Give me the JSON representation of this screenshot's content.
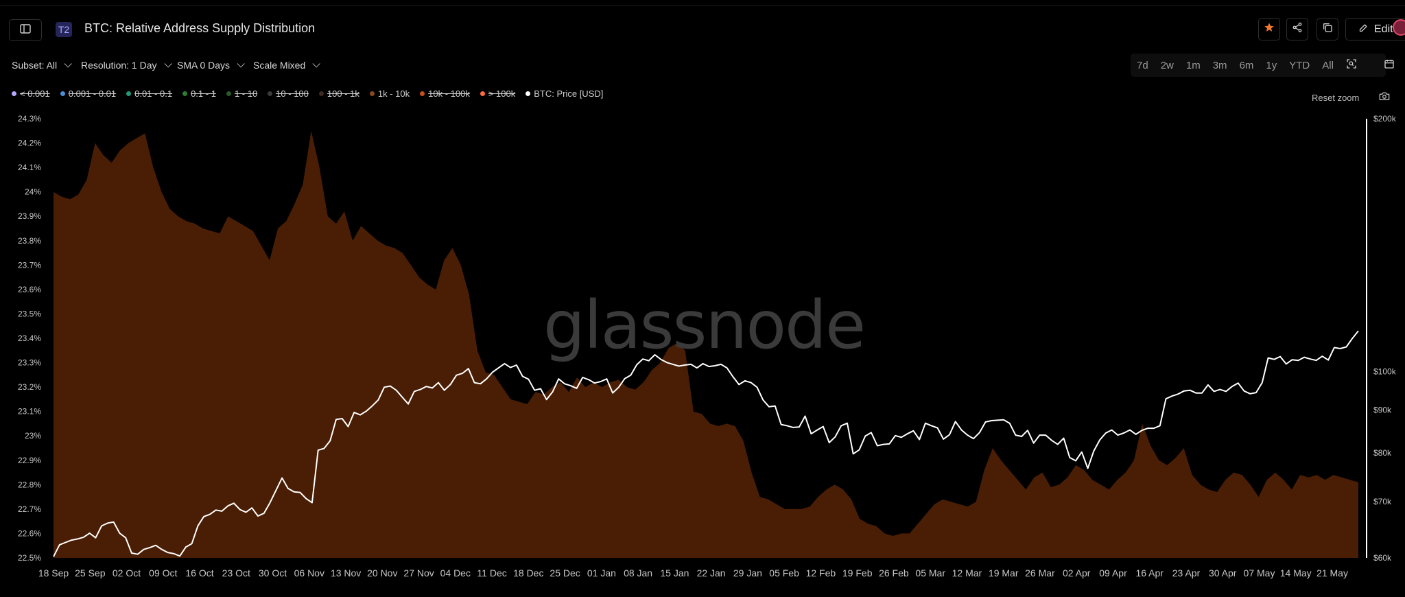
{
  "header": {
    "tier_badge": "T2",
    "title": "BTC: Relative Address Supply Distribution",
    "edit_label": "Edit"
  },
  "controls": {
    "subset": "Subset: All",
    "resolution": "Resolution: 1 Day",
    "sma": "SMA 0 Days",
    "scale": "Scale Mixed"
  },
  "ranges": [
    "7d",
    "2w",
    "1m",
    "3m",
    "6m",
    "1y",
    "YTD",
    "All"
  ],
  "reset_zoom": "Reset zoom",
  "watermark": "glassnode",
  "legend": [
    {
      "label": "< 0.001",
      "color": "#b6a9ff",
      "active": false
    },
    {
      "label": "0.001 - 0.01",
      "color": "#4a90d9",
      "active": false
    },
    {
      "label": "0.01 - 0.1",
      "color": "#1f9a7a",
      "active": false
    },
    {
      "label": "0.1 - 1",
      "color": "#2e7d32",
      "active": false
    },
    {
      "label": "1 - 10",
      "color": "#2b5a2b",
      "active": false
    },
    {
      "label": "10 - 100",
      "color": "#3b3b3b",
      "active": false
    },
    {
      "label": "100 - 1k",
      "color": "#3e2a1e",
      "active": false
    },
    {
      "label": "1k - 10k",
      "color": "#8a4a1e",
      "active": true
    },
    {
      "label": "10k - 100k",
      "color": "#c4501f",
      "active": false
    },
    {
      "label": "> 100k",
      "color": "#ff6a3d",
      "active": false
    },
    {
      "label": "BTC: Price [USD]",
      "color": "#ffffff",
      "active": true
    }
  ],
  "chart_data": {
    "type": "area",
    "x_ticks": [
      "18 Sep",
      "25 Sep",
      "02 Oct",
      "09 Oct",
      "16 Oct",
      "23 Oct",
      "30 Oct",
      "06 Nov",
      "13 Nov",
      "20 Nov",
      "27 Nov",
      "04 Dec",
      "11 Dec",
      "18 Dec",
      "25 Dec",
      "01 Jan",
      "08 Jan",
      "15 Jan",
      "22 Jan",
      "29 Jan",
      "05 Feb",
      "12 Feb",
      "19 Feb",
      "26 Feb",
      "05 Mar",
      "12 Mar",
      "19 Mar",
      "26 Mar",
      "02 Apr",
      "09 Apr",
      "16 Apr",
      "23 Apr",
      "30 Apr",
      "07 May",
      "14 May",
      "21 May"
    ],
    "left_axis": {
      "ticks": [
        "22.5%",
        "22.6%",
        "22.7%",
        "22.8%",
        "22.9%",
        "23%",
        "23.1%",
        "23.2%",
        "23.3%",
        "23.4%",
        "23.5%",
        "23.6%",
        "23.7%",
        "23.8%",
        "23.9%",
        "24%",
        "24.1%",
        "24.2%",
        "24.3%"
      ],
      "range": [
        22.5,
        24.3
      ]
    },
    "right_axis": {
      "ticks": [
        "$60k",
        "$70k",
        "$80k",
        "$90k",
        "$100k",
        "$200k"
      ],
      "values": [
        60000,
        70000,
        80000,
        90000,
        100000,
        200000
      ],
      "scale": "log",
      "range": [
        60000,
        200000
      ]
    },
    "series": [
      {
        "name": "1k - 10k",
        "axis": "left",
        "unit": "percent",
        "values": [
          24.0,
          23.98,
          23.97,
          23.99,
          24.05,
          24.2,
          24.15,
          24.12,
          24.17,
          24.2,
          24.22,
          24.24,
          24.1,
          24.0,
          23.93,
          23.9,
          23.88,
          23.87,
          23.85,
          23.84,
          23.83,
          23.9,
          23.88,
          23.86,
          23.84,
          23.78,
          23.72,
          23.85,
          23.88,
          23.95,
          24.03,
          24.25,
          24.1,
          23.9,
          23.87,
          23.92,
          23.8,
          23.86,
          23.83,
          23.8,
          23.78,
          23.77,
          23.75,
          23.7,
          23.65,
          23.62,
          23.6,
          23.72,
          23.77,
          23.7,
          23.58,
          23.35,
          23.26,
          23.25,
          23.2,
          23.15,
          23.14,
          23.13,
          23.18,
          23.17,
          23.2,
          23.22,
          23.18,
          23.24,
          23.2,
          23.22,
          23.2,
          23.22,
          23.23,
          23.2,
          23.19,
          23.22,
          23.27,
          23.3,
          23.36,
          23.38,
          23.35,
          23.1,
          23.09,
          23.05,
          23.04,
          23.05,
          23.04,
          22.98,
          22.85,
          22.75,
          22.74,
          22.72,
          22.7,
          22.7,
          22.7,
          22.71,
          22.75,
          22.78,
          22.8,
          22.78,
          22.74,
          22.66,
          22.64,
          22.63,
          22.6,
          22.59,
          22.6,
          22.6,
          22.64,
          22.68,
          22.72,
          22.74,
          22.73,
          22.72,
          22.71,
          22.73,
          22.86,
          22.95,
          22.9,
          22.86,
          22.82,
          22.78,
          22.83,
          22.85,
          22.79,
          22.8,
          22.83,
          22.88,
          22.86,
          22.82,
          22.8,
          22.78,
          22.82,
          22.85,
          22.9,
          23.05,
          22.96,
          22.9,
          22.88,
          22.91,
          22.95,
          22.84,
          22.8,
          22.78,
          22.77,
          22.82,
          22.85,
          22.84,
          22.8,
          22.75,
          22.82,
          22.85,
          22.82,
          22.78,
          22.84,
          22.83,
          22.84,
          22.82,
          22.84,
          22.83,
          22.82,
          22.81
        ]
      },
      {
        "name": "BTC: Price [USD]",
        "axis": "right",
        "unit": "USD",
        "values": [
          60200,
          62200,
          62600,
          63000,
          63200,
          63500,
          64200,
          63400,
          65500,
          66000,
          66200,
          64200,
          63400,
          60800,
          60600,
          61400,
          61700,
          62100,
          61400,
          60900,
          60700,
          60300,
          61800,
          62400,
          65500,
          67200,
          67600,
          68400,
          68200,
          69200,
          69700,
          68500,
          68000,
          68800,
          67300,
          67800,
          69800,
          72200,
          74700,
          72600,
          71900,
          71800,
          70600,
          69800,
          80600,
          81000,
          82700,
          87700,
          87900,
          86000,
          89400,
          88800,
          89700,
          91000,
          92500,
          95800,
          96100,
          95000,
          93200,
          91500,
          94700,
          95200,
          96000,
          95600,
          97000,
          95000,
          96500,
          99000,
          99500,
          100800,
          97000,
          96700,
          98000,
          99800,
          101000,
          102200,
          101100,
          101800,
          98700,
          97900,
          95000,
          95400,
          92600,
          94600,
          98000,
          96700,
          96200,
          95500,
          98400,
          97800,
          96900,
          97300,
          98000,
          94300,
          95800,
          98100,
          99000,
          101900,
          103500,
          103000,
          104700,
          103400,
          102500,
          102000,
          101500,
          101800,
          102000,
          101000,
          102200,
          101400,
          101600,
          102000,
          101000,
          98600,
          96500,
          97500,
          97000,
          95800,
          92500,
          90800,
          91000,
          86500,
          86200,
          85800,
          85900,
          88500,
          84300,
          85200,
          86000,
          82300,
          83600,
          86200,
          86800,
          79800,
          80700,
          83800,
          84600,
          81600,
          81900,
          82000,
          83900,
          83500,
          84300,
          85000,
          83000,
          86800,
          86200,
          85700,
          83100,
          84100,
          87200,
          85200,
          84000,
          83200,
          84600,
          87100,
          87400,
          87500,
          87600,
          86800,
          84000,
          83700,
          85100,
          82200,
          84000,
          84000,
          82800,
          81900,
          83300,
          79000,
          78300,
          80200,
          76700,
          80400,
          82900,
          84500,
          85200,
          84000,
          84500,
          85200,
          84200,
          85100,
          85600,
          85600,
          86200,
          92800,
          93500,
          94000,
          94800,
          95000,
          94300,
          94300,
          96400,
          94700,
          95200,
          94700,
          96000,
          96900,
          94800,
          94100,
          94400,
          97000,
          103800,
          103400,
          104200,
          102100,
          103300,
          103100,
          104000,
          103500,
          103100,
          104300,
          103200,
          106800,
          106500,
          107000,
          109500,
          111800
        ]
      }
    ]
  }
}
